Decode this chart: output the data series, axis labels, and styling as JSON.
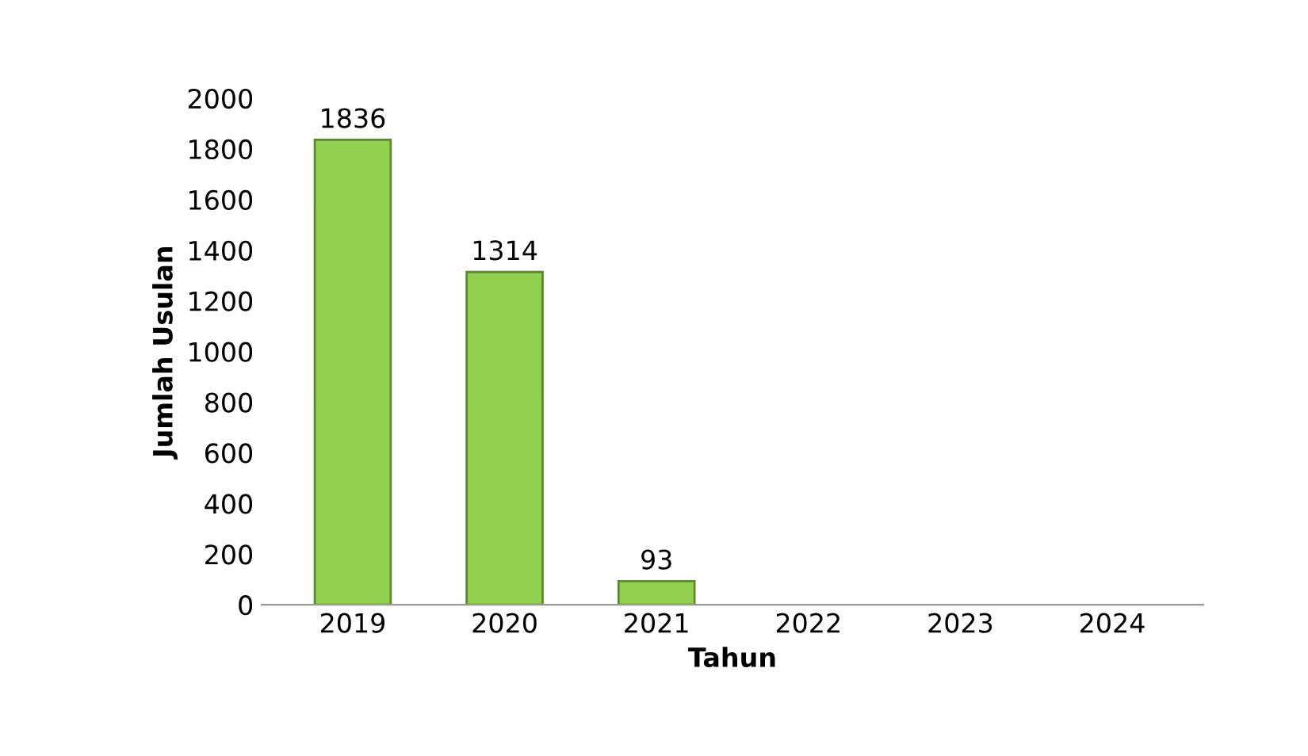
{
  "chart_data": {
    "type": "bar",
    "xlabel": "Tahun",
    "ylabel": "Jumlah Usulan",
    "categories": [
      "2019",
      "2020",
      "2021",
      "2022",
      "2023",
      "2024"
    ],
    "values": [
      1836,
      1314,
      93,
      null,
      null,
      null
    ],
    "color": "#92d050",
    "ylim": [
      0,
      2000
    ],
    "yticks": [
      0,
      200,
      400,
      600,
      800,
      1000,
      1200,
      1400,
      1600,
      1800,
      2000
    ],
    "grid": false,
    "data_labels": true
  }
}
